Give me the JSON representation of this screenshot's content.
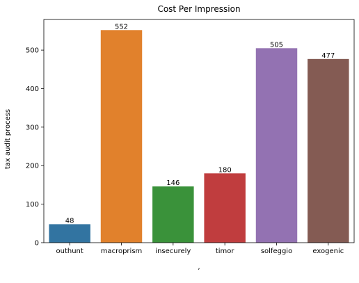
{
  "chart_data": {
    "type": "bar",
    "title": "Cost Per Impression",
    "xlabel": ",",
    "ylabel": "tax audit process",
    "categories": [
      "outhunt",
      "macroprism",
      "insecurely",
      "timor",
      "solfeggio",
      "exogenic"
    ],
    "values": [
      48,
      552,
      146,
      180,
      505,
      477
    ],
    "value_labels": [
      "48",
      "552",
      "146",
      "180",
      "505",
      "477"
    ],
    "colors": [
      "#3274a1",
      "#e1812c",
      "#3a923a",
      "#c03d3e",
      "#9372b2",
      "#845b53"
    ],
    "ylim": [
      0,
      579.6
    ],
    "yticks": [
      0,
      100,
      200,
      300,
      400,
      500
    ],
    "ytick_labels": [
      "0",
      "100",
      "200",
      "300",
      "400",
      "500"
    ],
    "grid": false,
    "legend": "none"
  }
}
